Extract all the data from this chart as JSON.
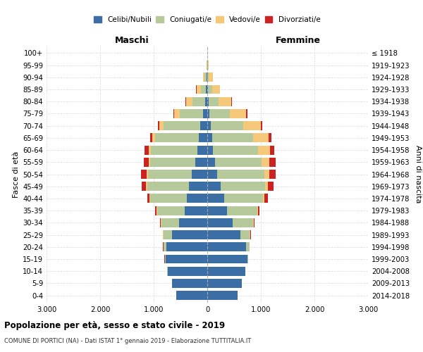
{
  "age_groups": [
    "0-4",
    "5-9",
    "10-14",
    "15-19",
    "20-24",
    "25-29",
    "30-34",
    "35-39",
    "40-44",
    "45-49",
    "50-54",
    "55-59",
    "60-64",
    "65-69",
    "70-74",
    "75-79",
    "80-84",
    "85-89",
    "90-94",
    "95-99",
    "100+"
  ],
  "birth_years": [
    "2014-2018",
    "2009-2013",
    "2004-2008",
    "1999-2003",
    "1994-1998",
    "1989-1993",
    "1984-1988",
    "1979-1983",
    "1974-1978",
    "1969-1973",
    "1964-1968",
    "1959-1963",
    "1954-1958",
    "1949-1953",
    "1944-1948",
    "1939-1943",
    "1934-1938",
    "1929-1933",
    "1924-1928",
    "1919-1923",
    "≤ 1918"
  ],
  "male_celibi": [
    580,
    660,
    740,
    780,
    760,
    660,
    520,
    420,
    380,
    340,
    290,
    230,
    180,
    160,
    130,
    80,
    40,
    20,
    8,
    4,
    2
  ],
  "male_coniugati": [
    2,
    2,
    5,
    15,
    60,
    160,
    340,
    520,
    680,
    780,
    820,
    830,
    870,
    810,
    680,
    430,
    240,
    100,
    40,
    10,
    2
  ],
  "male_vedovi": [
    0,
    0,
    0,
    1,
    2,
    3,
    5,
    8,
    15,
    20,
    25,
    30,
    45,
    60,
    90,
    110,
    120,
    80,
    30,
    5,
    1
  ],
  "male_divorziati": [
    0,
    0,
    0,
    1,
    3,
    8,
    15,
    25,
    50,
    80,
    100,
    90,
    70,
    40,
    25,
    15,
    8,
    4,
    2,
    0,
    0
  ],
  "female_celibi": [
    560,
    640,
    710,
    750,
    730,
    620,
    480,
    370,
    320,
    250,
    190,
    140,
    110,
    90,
    60,
    40,
    20,
    8,
    4,
    2,
    1
  ],
  "female_coniugati": [
    2,
    2,
    5,
    15,
    60,
    180,
    380,
    560,
    720,
    830,
    880,
    870,
    840,
    760,
    610,
    380,
    190,
    80,
    25,
    8,
    2
  ],
  "female_vedovi": [
    0,
    0,
    0,
    1,
    2,
    4,
    8,
    15,
    30,
    55,
    90,
    150,
    220,
    300,
    330,
    310,
    240,
    150,
    70,
    20,
    2
  ],
  "female_divorziati": [
    0,
    0,
    0,
    1,
    4,
    10,
    20,
    35,
    65,
    100,
    120,
    110,
    80,
    45,
    25,
    15,
    8,
    5,
    2,
    1,
    0
  ],
  "colors": {
    "celibi": "#3a6ea5",
    "coniugati": "#b5c99a",
    "vedovi": "#f5c87a",
    "divorziati": "#cc2222"
  },
  "xlim": 3000,
  "xlabel_left": "Maschi",
  "xlabel_right": "Femmine",
  "ylabel_left": "Fasce di età",
  "ylabel_right": "Anni di nascita",
  "title": "Popolazione per età, sesso e stato civile - 2019",
  "subtitle": "COMUNE DI PORTICI (NA) - Dati ISTAT 1° gennaio 2019 - Elaborazione TUTTITALIA.IT",
  "legend_labels": [
    "Celibi/Nubili",
    "Coniugati/e",
    "Vedovi/e",
    "Divorziati/e"
  ]
}
